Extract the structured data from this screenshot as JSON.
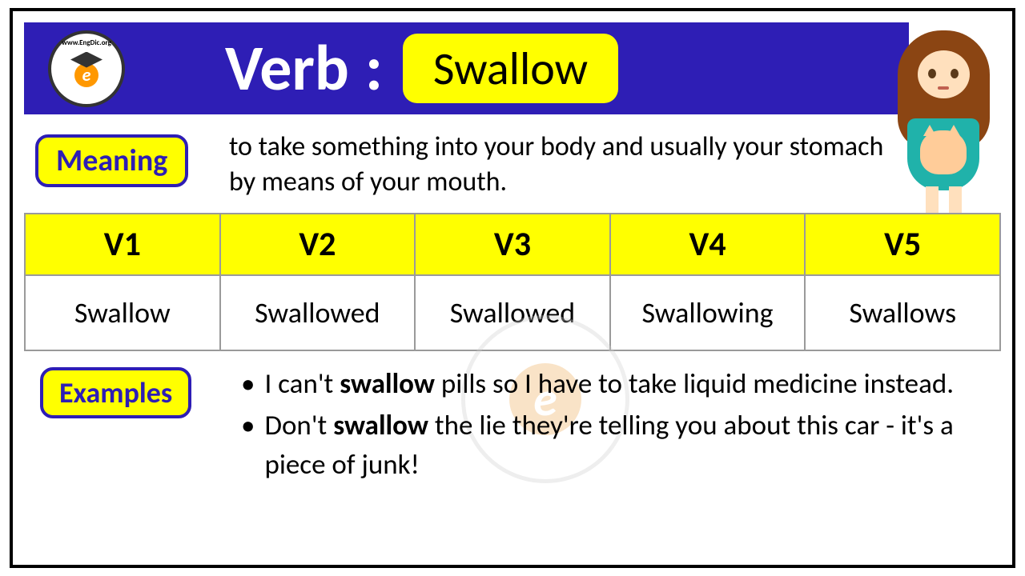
{
  "header": {
    "verb_label": "Verb",
    "colon": ":",
    "word": "Swallow",
    "logo_top_text": "www.EngDic.org",
    "logo_letter": "e",
    "colors": {
      "bar_bg": "#2e1eb5",
      "highlight": "#ffff00",
      "title_text": "#ffffff"
    }
  },
  "meaning": {
    "label": "Meaning",
    "text": "to take something into your body and usually your stomach by means of your mouth."
  },
  "table": {
    "columns": [
      "V1",
      "V2",
      "V3",
      "V4",
      "V5"
    ],
    "row": [
      "Swallow",
      "Swallowed",
      "Swallowed",
      "Swallowing",
      "Swallows"
    ],
    "header_bg": "#ffff00",
    "border_color": "#9a9a9a",
    "header_fontsize": 42,
    "cell_fontsize": 36
  },
  "examples": {
    "label": "Examples",
    "items": [
      {
        "pre": "I can't ",
        "bold": "swallow",
        "post": " pills so I have to take liquid medicine instead."
      },
      {
        "pre": "Don't ",
        "bold": "swallow",
        "post": " the lie they're telling you about this car - it's a piece of junk!"
      }
    ]
  },
  "watermark": {
    "letter": "e"
  }
}
